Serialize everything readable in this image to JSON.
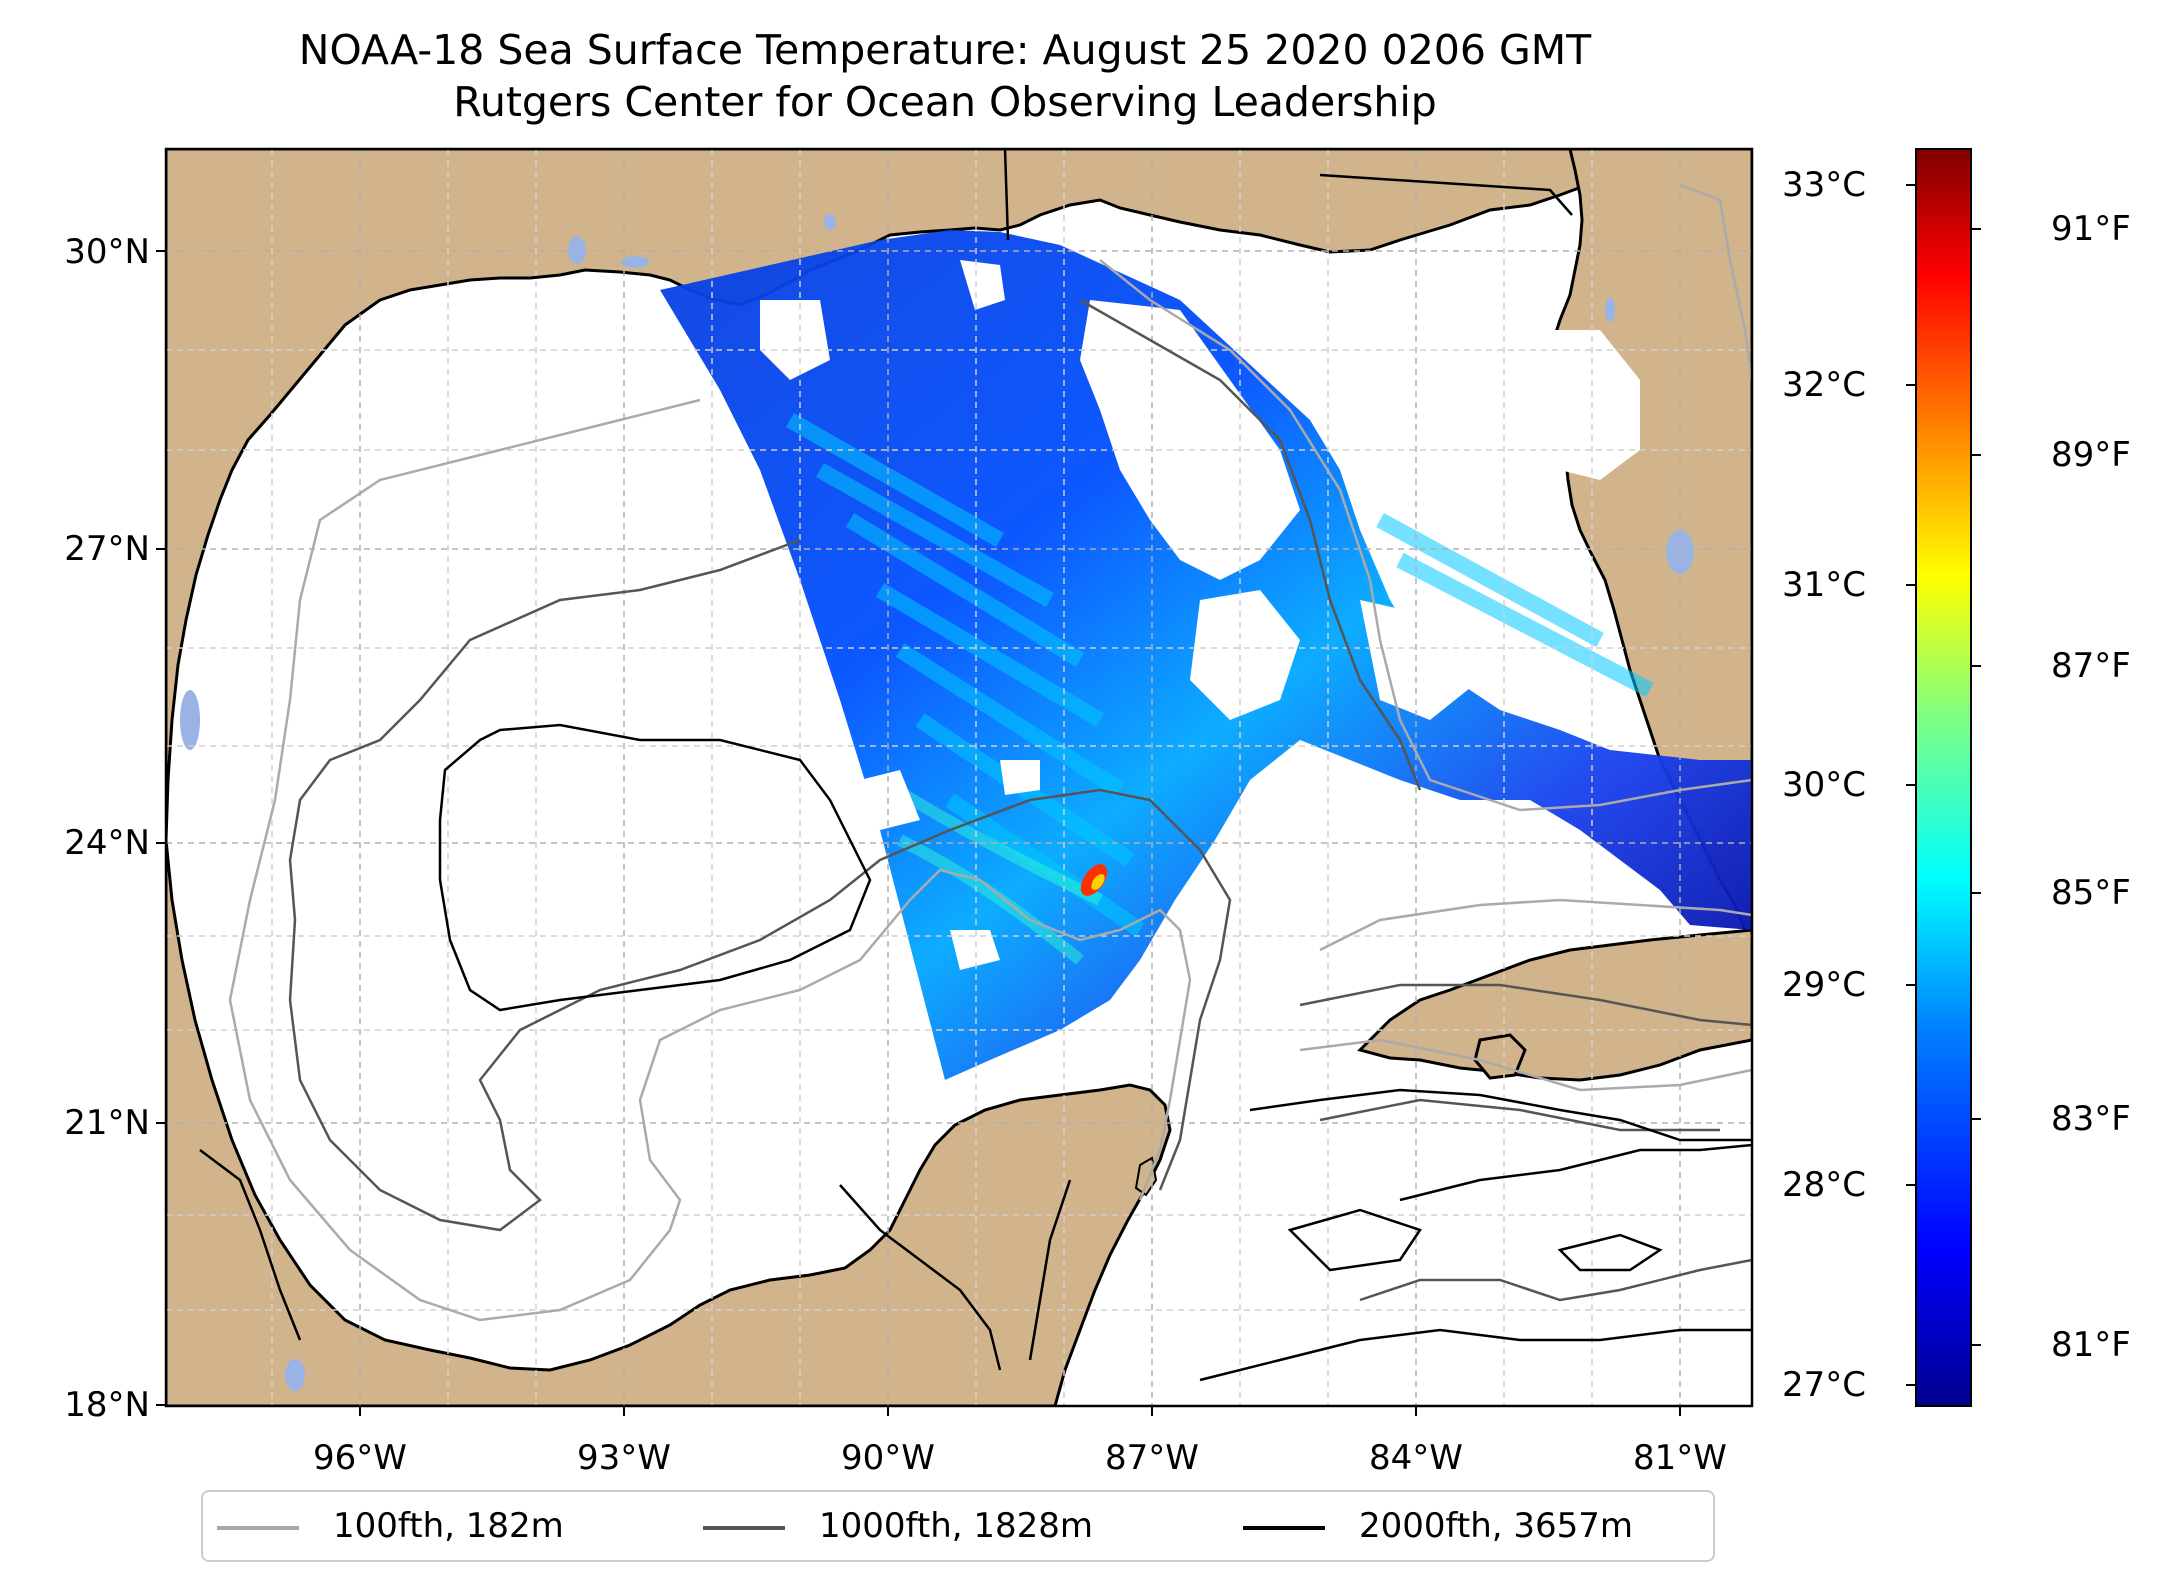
{
  "title": "NOAA-18 Sea Surface Temperature: August 25 2020 0206 GMT",
  "subtitle": "Rutgers Center for Ocean Observing Leadership",
  "axes": {
    "lat_labels": [
      "30°N",
      "27°N",
      "24°N",
      "21°N",
      "18°N"
    ],
    "lon_labels": [
      "96°W",
      "93°W",
      "90°W",
      "87°W",
      "84°W",
      "81°W"
    ]
  },
  "colorbar": {
    "celsius_labels": [
      "33°C",
      "32°C",
      "31°C",
      "30°C",
      "29°C",
      "28°C",
      "27°C"
    ],
    "fahrenheit_labels": [
      "91°F",
      "89°F",
      "87°F",
      "85°F",
      "83°F",
      "81°F"
    ],
    "colormap": [
      "#00008f",
      "#0000ff",
      "#0080ff",
      "#00ffff",
      "#80ff80",
      "#ffff00",
      "#ff8000",
      "#ff0000",
      "#800000"
    ]
  },
  "legend": {
    "items": [
      {
        "label": "100fth, 182m",
        "color": "#aaaaaa"
      },
      {
        "label": "1000fth, 1828m",
        "color": "#555555"
      },
      {
        "label": "2000fth, 3657m",
        "color": "#000000"
      }
    ]
  },
  "colors": {
    "land": "#d2b48c",
    "lakes": "#99b3e6",
    "ocean_nodata": "#ffffff"
  }
}
